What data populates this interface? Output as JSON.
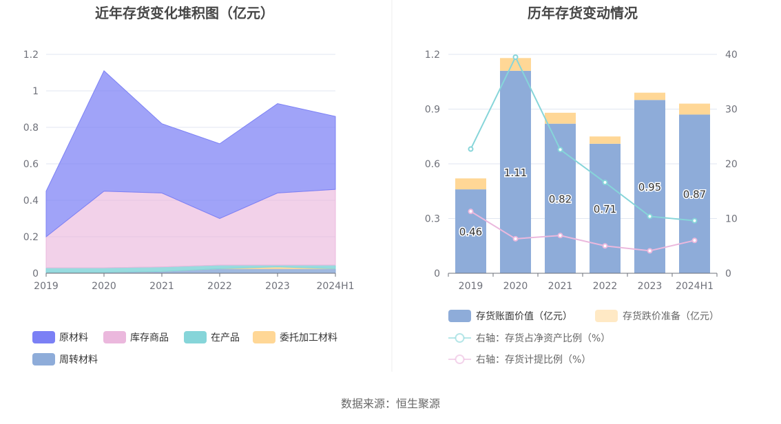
{
  "source_text": "数据来源：恒生聚源",
  "chart_data": [
    {
      "type": "area",
      "stacked": true,
      "title": "近年存货变化堆积图（亿元）",
      "categories": [
        "2019",
        "2020",
        "2021",
        "2022",
        "2023",
        "2024H1"
      ],
      "ylim": [
        0,
        1.2
      ],
      "yticks": [
        "0",
        "0.2",
        "0.4",
        "0.6",
        "0.8",
        "1",
        "1.2"
      ],
      "grid": true,
      "legend_position": "bottom",
      "series": [
        {
          "name": "周转材料",
          "color": "#8eacd9",
          "values": [
            0.005,
            0.005,
            0.01,
            0.025,
            0.025,
            0.025
          ]
        },
        {
          "name": "委托加工材料",
          "color": "#ffd796",
          "values": [
            0.0,
            0.0,
            0.0,
            0.0,
            0.01,
            0.0
          ]
        },
        {
          "name": "在产品",
          "color": "#86d5d9",
          "values": [
            0.025,
            0.025,
            0.025,
            0.02,
            0.01,
            0.02
          ]
        },
        {
          "name": "库存商品",
          "color": "#ebb8dd",
          "values": [
            0.17,
            0.42,
            0.405,
            0.255,
            0.395,
            0.415
          ]
        },
        {
          "name": "原材料",
          "color": "#7b80f5",
          "values": [
            0.25,
            0.66,
            0.38,
            0.41,
            0.49,
            0.4
          ]
        }
      ],
      "legend_order": [
        "原材料",
        "库存商品",
        "在产品",
        "委托加工材料",
        "周转材料"
      ]
    },
    {
      "type": "bar",
      "stacked": true,
      "title": "历年存货变动情况",
      "categories": [
        "2019",
        "2020",
        "2021",
        "2022",
        "2023",
        "2024H1"
      ],
      "ylim": [
        0,
        1.2
      ],
      "yticks": [
        "0",
        "0.3",
        "0.6",
        "0.9",
        "1.2"
      ],
      "y2lim": [
        0,
        40
      ],
      "y2ticks": [
        "0",
        "10",
        "20",
        "30",
        "40"
      ],
      "grid": true,
      "legend_position": "bottom",
      "series": [
        {
          "name": "存货账面价值（亿元）",
          "color": "#8eacd9",
          "values": [
            0.46,
            1.11,
            0.82,
            0.71,
            0.95,
            0.87
          ],
          "labels": [
            "0.46",
            "1.11",
            "0.82",
            "0.71",
            "0.95",
            "0.87"
          ]
        },
        {
          "name": "存货跌价准备（亿元）",
          "color": "#ffd796",
          "values": [
            0.06,
            0.07,
            0.06,
            0.04,
            0.04,
            0.06
          ]
        }
      ],
      "lines": [
        {
          "name": "右轴：存货占净资产比例（%）",
          "color": "#86d5d9",
          "axis": "right",
          "values": [
            22.7,
            39.5,
            22.6,
            16.6,
            10.4,
            9.6
          ]
        },
        {
          "name": "右轴：存货计提比例（%）",
          "color": "#ebb8dd",
          "axis": "right",
          "values": [
            11.3,
            6.3,
            6.9,
            5.0,
            4.1,
            6.0
          ]
        }
      ]
    }
  ]
}
